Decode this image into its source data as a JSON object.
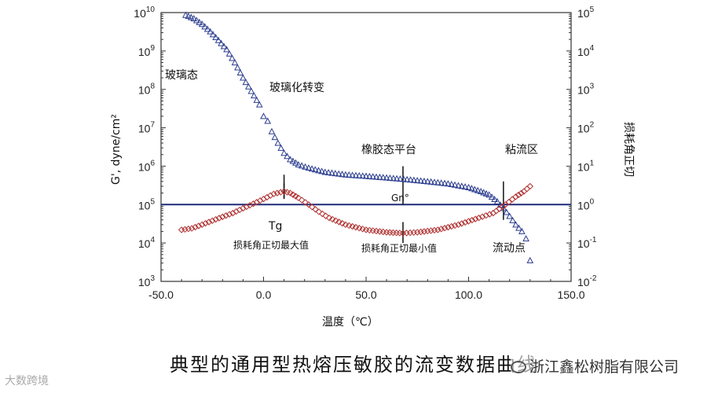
{
  "chart_data": {
    "type": "scatter",
    "xlabel": "温度（℃）",
    "ylabel_left": "G', dyne/cm²",
    "ylabel_right": "损耗角正切",
    "xlim": [
      -50,
      150
    ],
    "ylim_left": [
      1000,
      10000000000
    ],
    "ylim_right": [
      0.01,
      100000
    ],
    "yscale": "log",
    "grid": false,
    "x_ticks": [
      "-50.0",
      "0.0",
      "50.0",
      "100.0",
      "150.0"
    ],
    "y_left_ticks": [
      "10",
      "10",
      "10",
      "10",
      "10",
      "10",
      "10",
      "10"
    ],
    "y_left_exps": [
      "3",
      "4",
      "5",
      "6",
      "7",
      "8",
      "9",
      "10"
    ],
    "y_right_ticks": [
      "10",
      "10",
      "10",
      "10",
      "10",
      "10",
      "10",
      "10"
    ],
    "y_right_exps": [
      "-2",
      "-1",
      "0",
      "1",
      "2",
      "3",
      "4",
      "5"
    ],
    "series": [
      {
        "marker": "triangle",
        "color": "#2b3d8f",
        "points": [
          [
            -38,
            8600000000.0
          ],
          [
            -34,
            7000000000.0
          ],
          [
            -30,
            5000000000.0
          ],
          [
            -26,
            3200000000.0
          ],
          [
            -22,
            1900000000.0
          ],
          [
            -18,
            1100000000.0
          ],
          [
            -14,
            500000000.0
          ],
          [
            -10,
            200000000.0
          ],
          [
            -6,
            90000000.0
          ],
          [
            -2,
            40000000.0
          ],
          [
            0,
            20000000.0
          ],
          [
            2,
            15000000.0
          ],
          [
            4,
            8000000.0
          ],
          [
            7,
            4000000.0
          ],
          [
            10,
            2200000.0
          ],
          [
            13,
            1500000.0
          ],
          [
            17,
            1100000.0
          ],
          [
            22,
            900000.0
          ],
          [
            30,
            700000.0
          ],
          [
            40,
            600000.0
          ],
          [
            50,
            550000.0
          ],
          [
            60,
            500000.0
          ],
          [
            70,
            450000.0
          ],
          [
            80,
            400000.0
          ],
          [
            90,
            350000.0
          ],
          [
            100,
            280000.0
          ],
          [
            106,
            220000.0
          ],
          [
            110,
            180000.0
          ],
          [
            114,
            120000.0
          ],
          [
            117,
            80000.0
          ],
          [
            120,
            50000.0
          ],
          [
            123,
            30000.0
          ],
          [
            126,
            20000.0
          ],
          [
            128,
            13000.0
          ],
          [
            130,
            3500.0
          ]
        ]
      },
      {
        "marker": "diamond",
        "color": "#b03030",
        "points": [
          [
            -40,
            0.22
          ],
          [
            -35,
            0.24
          ],
          [
            -30,
            0.3
          ],
          [
            -25,
            0.38
          ],
          [
            -20,
            0.48
          ],
          [
            -15,
            0.6
          ],
          [
            -10,
            0.8
          ],
          [
            -5,
            1.05
          ],
          [
            0,
            1.4
          ],
          [
            5,
            1.9
          ],
          [
            10,
            2.2
          ],
          [
            13,
            2.0
          ],
          [
            17,
            1.5
          ],
          [
            22,
            1.0
          ],
          [
            27,
            0.65
          ],
          [
            32,
            0.45
          ],
          [
            40,
            0.3
          ],
          [
            50,
            0.22
          ],
          [
            60,
            0.19
          ],
          [
            68,
            0.18
          ],
          [
            75,
            0.19
          ],
          [
            85,
            0.22
          ],
          [
            95,
            0.3
          ],
          [
            105,
            0.45
          ],
          [
            112,
            0.6
          ],
          [
            118,
            1.0
          ],
          [
            123,
            1.6
          ],
          [
            127,
            2.2
          ],
          [
            130,
            3.0
          ]
        ]
      }
    ],
    "horizontal_line": {
      "tan_delta": 1.0,
      "color": "#1e2a7a"
    },
    "markers": [
      {
        "x": 10,
        "label": "Tg"
      },
      {
        "x": 68,
        "label": "Gn°"
      },
      {
        "x": 117,
        "label": ""
      }
    ],
    "annotations": {
      "glass_state": "玻璃态",
      "glass_transition": "玻璃化转变",
      "rubbery_plateau": "橡胶态平台",
      "viscous_flow": "粘流区",
      "tg": "Tg",
      "gn": "Gn°",
      "max_tan": "损耗角正切最大值",
      "min_tan": "损耗角正切最小值",
      "flow_point": "流动点"
    }
  },
  "caption": "典型的通用型热熔压敏胶的流变数据曲线",
  "watermark_right": "浙江鑫松树脂有限公司",
  "watermark_left": "大数跨境",
  "icons": {
    "wechat": "wechat-icon"
  }
}
